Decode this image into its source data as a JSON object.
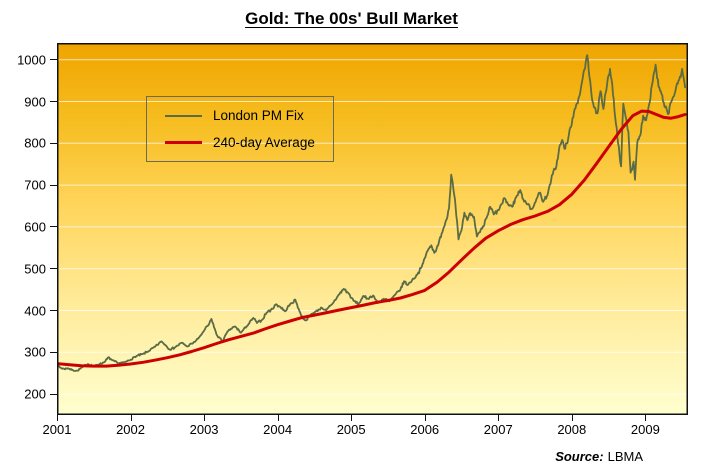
{
  "chart_data": {
    "type": "line",
    "title": "Gold: The 00s' Bull Market",
    "source_label": "Source:",
    "source": "LBMA",
    "xlabel": "",
    "ylabel": "",
    "xlim": [
      2001,
      2009.58
    ],
    "ylim": [
      150,
      1040
    ],
    "x_ticks": [
      2001,
      2002,
      2003,
      2004,
      2005,
      2006,
      2007,
      2008,
      2009
    ],
    "y_ticks": [
      200,
      300,
      400,
      500,
      600,
      700,
      800,
      900,
      1000
    ],
    "grid": "horizontal",
    "legend_position": "upper-left",
    "style": {
      "bg_stops": [
        "#efa400",
        "#f6bc1e",
        "#ffd65e",
        "#ffeb9a",
        "#ffffd0"
      ],
      "grid_color": "#ffffff",
      "grid_opacity": 0.7,
      "border_color": "#111111",
      "text_color": "#000000"
    },
    "series": [
      {
        "name": "London PM Fix",
        "color": "#5a6b45",
        "stroke_width": 1.8,
        "jitter_pct": 0.009,
        "points": [
          [
            2001.0,
            268
          ],
          [
            2001.05,
            263
          ],
          [
            2001.1,
            260
          ],
          [
            2001.15,
            262
          ],
          [
            2001.2,
            258
          ],
          [
            2001.28,
            256
          ],
          [
            2001.35,
            265
          ],
          [
            2001.42,
            272
          ],
          [
            2001.5,
            267
          ],
          [
            2001.58,
            272
          ],
          [
            2001.65,
            277
          ],
          [
            2001.7,
            288
          ],
          [
            2001.75,
            281
          ],
          [
            2001.83,
            274
          ],
          [
            2001.92,
            276
          ],
          [
            2002.0,
            282
          ],
          [
            2002.08,
            291
          ],
          [
            2002.17,
            296
          ],
          [
            2002.25,
            303
          ],
          [
            2002.33,
            313
          ],
          [
            2002.42,
            326
          ],
          [
            2002.47,
            318
          ],
          [
            2002.54,
            306
          ],
          [
            2002.62,
            314
          ],
          [
            2002.7,
            323
          ],
          [
            2002.77,
            314
          ],
          [
            2002.85,
            322
          ],
          [
            2002.93,
            335
          ],
          [
            2003.0,
            352
          ],
          [
            2003.07,
            368
          ],
          [
            2003.1,
            380
          ],
          [
            2003.17,
            342
          ],
          [
            2003.25,
            326
          ],
          [
            2003.33,
            352
          ],
          [
            2003.42,
            362
          ],
          [
            2003.5,
            347
          ],
          [
            2003.58,
            362
          ],
          [
            2003.67,
            382
          ],
          [
            2003.72,
            370
          ],
          [
            2003.79,
            378
          ],
          [
            2003.85,
            395
          ],
          [
            2003.93,
            404
          ],
          [
            2003.98,
            415
          ],
          [
            2004.04,
            408
          ],
          [
            2004.1,
            398
          ],
          [
            2004.17,
            415
          ],
          [
            2004.24,
            426
          ],
          [
            2004.32,
            388
          ],
          [
            2004.38,
            376
          ],
          [
            2004.45,
            390
          ],
          [
            2004.52,
            398
          ],
          [
            2004.6,
            407
          ],
          [
            2004.66,
            400
          ],
          [
            2004.74,
            415
          ],
          [
            2004.82,
            435
          ],
          [
            2004.9,
            452
          ],
          [
            2004.97,
            440
          ],
          [
            2005.03,
            424
          ],
          [
            2005.1,
            415
          ],
          [
            2005.16,
            434
          ],
          [
            2005.23,
            428
          ],
          [
            2005.3,
            436
          ],
          [
            2005.36,
            418
          ],
          [
            2005.44,
            428
          ],
          [
            2005.52,
            422
          ],
          [
            2005.6,
            438
          ],
          [
            2005.67,
            450
          ],
          [
            2005.72,
            470
          ],
          [
            2005.77,
            461
          ],
          [
            2005.84,
            476
          ],
          [
            2005.9,
            486
          ],
          [
            2005.96,
            505
          ],
          [
            2006.0,
            525
          ],
          [
            2006.05,
            547
          ],
          [
            2006.09,
            556
          ],
          [
            2006.13,
            538
          ],
          [
            2006.18,
            555
          ],
          [
            2006.23,
            584
          ],
          [
            2006.28,
            610
          ],
          [
            2006.33,
            644
          ],
          [
            2006.36,
            725
          ],
          [
            2006.39,
            690
          ],
          [
            2006.42,
            648
          ],
          [
            2006.46,
            570
          ],
          [
            2006.5,
            592
          ],
          [
            2006.54,
            634
          ],
          [
            2006.58,
            616
          ],
          [
            2006.62,
            633
          ],
          [
            2006.67,
            624
          ],
          [
            2006.71,
            577
          ],
          [
            2006.75,
            587
          ],
          [
            2006.8,
            601
          ],
          [
            2006.85,
            626
          ],
          [
            2006.89,
            648
          ],
          [
            2006.94,
            630
          ],
          [
            2007.0,
            640
          ],
          [
            2007.05,
            655
          ],
          [
            2007.09,
            668
          ],
          [
            2007.14,
            652
          ],
          [
            2007.19,
            648
          ],
          [
            2007.24,
            670
          ],
          [
            2007.3,
            688
          ],
          [
            2007.34,
            666
          ],
          [
            2007.4,
            654
          ],
          [
            2007.46,
            643
          ],
          [
            2007.52,
            667
          ],
          [
            2007.57,
            682
          ],
          [
            2007.61,
            660
          ],
          [
            2007.66,
            673
          ],
          [
            2007.71,
            703
          ],
          [
            2007.75,
            733
          ],
          [
            2007.79,
            745
          ],
          [
            2007.83,
            790
          ],
          [
            2007.87,
            808
          ],
          [
            2007.9,
            787
          ],
          [
            2007.94,
            800
          ],
          [
            2007.98,
            838
          ],
          [
            2008.02,
            862
          ],
          [
            2008.06,
            892
          ],
          [
            2008.1,
            912
          ],
          [
            2008.14,
            948
          ],
          [
            2008.18,
            978
          ],
          [
            2008.21,
            1011
          ],
          [
            2008.24,
            958
          ],
          [
            2008.27,
            912
          ],
          [
            2008.31,
            885
          ],
          [
            2008.35,
            872
          ],
          [
            2008.39,
            925
          ],
          [
            2008.43,
            882
          ],
          [
            2008.47,
            928
          ],
          [
            2008.52,
            978
          ],
          [
            2008.55,
            940
          ],
          [
            2008.59,
            862
          ],
          [
            2008.63,
            800
          ],
          [
            2008.67,
            745
          ],
          [
            2008.7,
            895
          ],
          [
            2008.73,
            865
          ],
          [
            2008.77,
            828
          ],
          [
            2008.8,
            730
          ],
          [
            2008.84,
            756
          ],
          [
            2008.86,
            713
          ],
          [
            2008.89,
            802
          ],
          [
            2008.93,
            818
          ],
          [
            2008.97,
            866
          ],
          [
            2009.01,
            855
          ],
          [
            2009.05,
            892
          ],
          [
            2009.09,
            940
          ],
          [
            2009.14,
            988
          ],
          [
            2009.18,
            935
          ],
          [
            2009.22,
            918
          ],
          [
            2009.26,
            888
          ],
          [
            2009.31,
            870
          ],
          [
            2009.36,
            902
          ],
          [
            2009.41,
            926
          ],
          [
            2009.46,
            952
          ],
          [
            2009.5,
            978
          ],
          [
            2009.54,
            934
          ]
        ]
      },
      {
        "name": "240-day Average",
        "color": "#cc0000",
        "stroke_width": 3,
        "jitter_pct": 0,
        "points": [
          [
            2001.0,
            273
          ],
          [
            2001.17,
            270
          ],
          [
            2001.33,
            268
          ],
          [
            2001.5,
            267
          ],
          [
            2001.67,
            267
          ],
          [
            2001.83,
            269
          ],
          [
            2002.0,
            272
          ],
          [
            2002.17,
            276
          ],
          [
            2002.33,
            281
          ],
          [
            2002.5,
            287
          ],
          [
            2002.67,
            294
          ],
          [
            2002.83,
            302
          ],
          [
            2003.0,
            311
          ],
          [
            2003.17,
            321
          ],
          [
            2003.33,
            330
          ],
          [
            2003.5,
            338
          ],
          [
            2003.67,
            346
          ],
          [
            2003.83,
            356
          ],
          [
            2004.0,
            366
          ],
          [
            2004.17,
            375
          ],
          [
            2004.33,
            383
          ],
          [
            2004.5,
            389
          ],
          [
            2004.67,
            395
          ],
          [
            2004.83,
            401
          ],
          [
            2005.0,
            407
          ],
          [
            2005.17,
            413
          ],
          [
            2005.33,
            419
          ],
          [
            2005.5,
            424
          ],
          [
            2005.67,
            430
          ],
          [
            2005.83,
            438
          ],
          [
            2006.0,
            448
          ],
          [
            2006.17,
            468
          ],
          [
            2006.33,
            492
          ],
          [
            2006.5,
            521
          ],
          [
            2006.67,
            549
          ],
          [
            2006.83,
            573
          ],
          [
            2007.0,
            591
          ],
          [
            2007.17,
            606
          ],
          [
            2007.33,
            617
          ],
          [
            2007.5,
            626
          ],
          [
            2007.67,
            637
          ],
          [
            2007.83,
            653
          ],
          [
            2008.0,
            678
          ],
          [
            2008.17,
            712
          ],
          [
            2008.33,
            750
          ],
          [
            2008.5,
            792
          ],
          [
            2008.67,
            833
          ],
          [
            2008.83,
            866
          ],
          [
            2008.95,
            877
          ],
          [
            2009.05,
            876
          ],
          [
            2009.15,
            869
          ],
          [
            2009.25,
            862
          ],
          [
            2009.35,
            860
          ],
          [
            2009.45,
            864
          ],
          [
            2009.54,
            869
          ]
        ]
      }
    ]
  }
}
